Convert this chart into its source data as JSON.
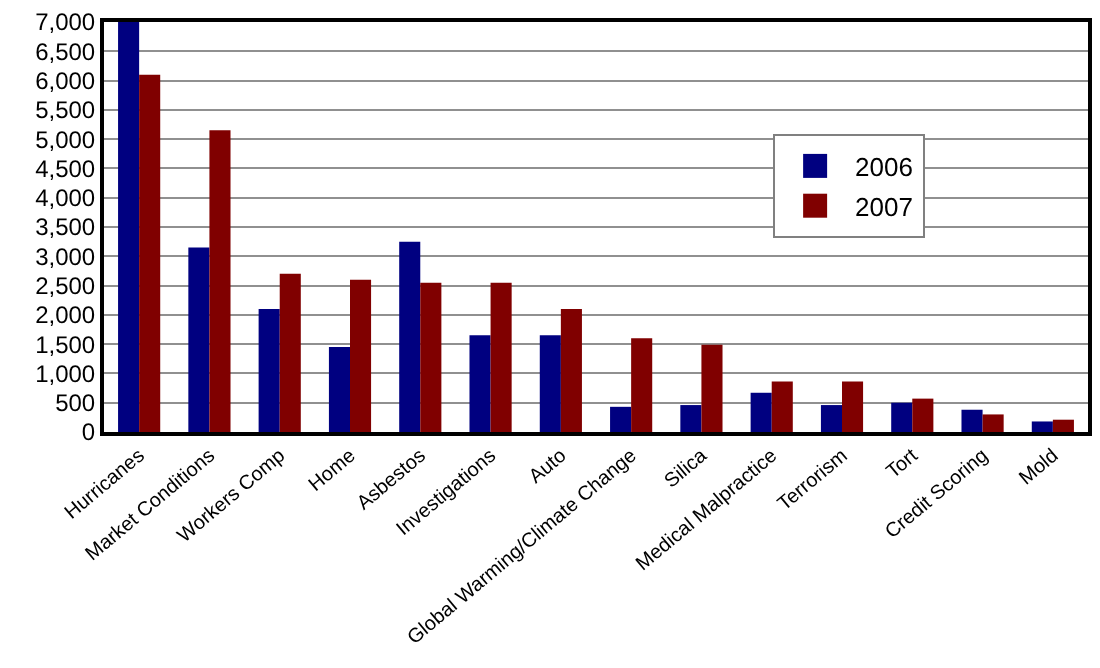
{
  "chart_data": {
    "type": "bar",
    "categories": [
      "Hurricanes",
      "Market Conditions",
      "Workers Comp",
      "Home",
      "Asbestos",
      "Investigations",
      "Auto",
      "Global Warming/Climate Change",
      "Silica",
      "Medical Malpractice",
      "Terrorism",
      "Tort",
      "Credit Scoring",
      "Mold"
    ],
    "series": [
      {
        "name": "2006",
        "color": "#000080",
        "values": [
          7000,
          3150,
          2100,
          1450,
          3250,
          1650,
          1650,
          430,
          460,
          670,
          460,
          500,
          380,
          180
        ]
      },
      {
        "name": "2007",
        "color": "#800000",
        "values": [
          6100,
          5150,
          2700,
          2600,
          2550,
          2550,
          2100,
          1600,
          1490,
          860,
          860,
          570,
          300,
          210
        ]
      }
    ],
    "ylim": [
      0,
      7000
    ],
    "yticks": [
      {
        "value": 0,
        "label": "0"
      },
      {
        "value": 500,
        "label": "500"
      },
      {
        "value": 1000,
        "label": "1,000"
      },
      {
        "value": 1500,
        "label": "1,500"
      },
      {
        "value": 2000,
        "label": "2,000"
      },
      {
        "value": 2500,
        "label": "2,500"
      },
      {
        "value": 3000,
        "label": "3,000"
      },
      {
        "value": 3500,
        "label": "3,500"
      },
      {
        "value": 4000,
        "label": "4,000"
      },
      {
        "value": 4500,
        "label": "4,500"
      },
      {
        "value": 5000,
        "label": "5,000"
      },
      {
        "value": 5500,
        "label": "5,500"
      },
      {
        "value": 6000,
        "label": "6,000"
      },
      {
        "value": 6500,
        "label": "6,500"
      },
      {
        "value": 7000,
        "label": "7,000"
      }
    ],
    "grid": "y",
    "legend": "right"
  }
}
